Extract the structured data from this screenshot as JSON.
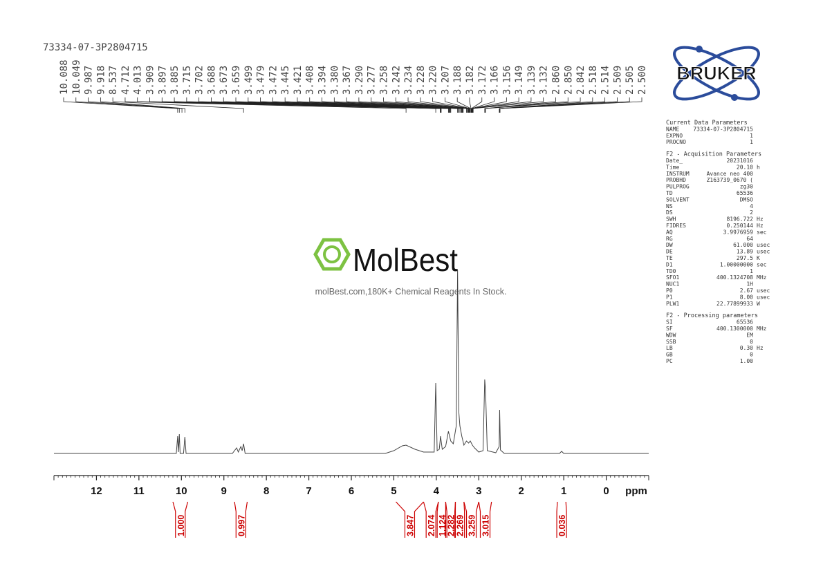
{
  "header": {
    "sample": "73334-07-3P2804715"
  },
  "logo": {
    "brand": "BRUKER"
  },
  "watermark": {
    "brand": "MolBest",
    "tagline": "molBest.com,180K+ Chemical Reagents In Stock."
  },
  "parameters": [
    {
      "title": "Current Data Parameters",
      "rows": [
        [
          "NAME",
          "73334-07-3P2804715",
          ""
        ],
        [
          "EXPNO",
          "1",
          ""
        ],
        [
          "PROCNO",
          "1",
          ""
        ]
      ]
    },
    {
      "title": "F2 - Acquisition Parameters",
      "rows": [
        [
          "Date_",
          "20231016",
          ""
        ],
        [
          "Time",
          "20.10",
          "h"
        ],
        [
          "INSTRUM",
          "Avance neo 400",
          ""
        ],
        [
          "PROBHD",
          "Z163739_0670 (",
          ""
        ],
        [
          "PULPROG",
          "zg30",
          ""
        ],
        [
          "TD",
          "65536",
          ""
        ],
        [
          "SOLVENT",
          "DMSO",
          ""
        ],
        [
          "NS",
          "4",
          ""
        ],
        [
          "DS",
          "2",
          ""
        ],
        [
          "SWH",
          "8196.722",
          "Hz"
        ],
        [
          "FIDRES",
          "0.250144",
          "Hz"
        ],
        [
          "AQ",
          "3.9976959",
          "sec"
        ],
        [
          "RG",
          "64",
          ""
        ],
        [
          "DW",
          "61.000",
          "usec"
        ],
        [
          "DE",
          "13.89",
          "usec"
        ],
        [
          "TE",
          "297.5",
          "K"
        ],
        [
          "D1",
          "1.00000000",
          "sec"
        ],
        [
          "TD0",
          "1",
          ""
        ],
        [
          "SFO1",
          "400.1324708",
          "MHz"
        ],
        [
          "NUC1",
          "1H",
          ""
        ],
        [
          "P0",
          "2.67",
          "usec"
        ],
        [
          "P1",
          "8.00",
          "usec"
        ],
        [
          "PLW1",
          "22.77899933",
          "W"
        ]
      ]
    },
    {
      "title": "F2 - Processing parameters",
      "rows": [
        [
          "SI",
          "65536",
          ""
        ],
        [
          "SF",
          "400.1300000",
          "MHz"
        ],
        [
          "WDW",
          "EM",
          ""
        ],
        [
          "SSB",
          "0",
          ""
        ],
        [
          "LB",
          "0.30",
          "Hz"
        ],
        [
          "GB",
          "0",
          ""
        ],
        [
          "PC",
          "1.00",
          ""
        ]
      ]
    }
  ],
  "chart_data": {
    "type": "line",
    "xlabel": "ppm",
    "xlim": [
      13.0,
      -1.0
    ],
    "xticks": [
      12,
      11,
      10,
      9,
      8,
      7,
      6,
      5,
      4,
      3,
      2,
      1,
      0
    ],
    "ylim": [
      0,
      270
    ],
    "x": [
      13,
      10.12,
      10.088,
      10.07,
      10.049,
      10.03,
      9.95,
      9.918,
      9.89,
      8.8,
      8.7,
      8.66,
      8.6,
      8.57,
      8.537,
      8.5,
      5.2,
      5.0,
      4.8,
      4.712,
      4.5,
      4.3,
      4.05,
      4.013,
      3.98,
      3.93,
      3.9,
      3.86,
      3.78,
      3.715,
      3.66,
      3.6,
      3.53,
      3.499,
      3.47,
      3.445,
      3.4,
      3.35,
      3.29,
      3.24,
      3.2,
      3.15,
      3.1,
      3.0,
      2.9,
      2.86,
      2.84,
      2.8,
      2.6,
      2.52,
      2.509,
      2.49,
      2.4,
      1.1,
      1.05,
      1.0,
      -1
    ],
    "series": [
      {
        "color": "#444444",
        "values": [
          0,
          0,
          25,
          2,
          28,
          0,
          0,
          24,
          0,
          0,
          8,
          2,
          10,
          4,
          14,
          0,
          0,
          4,
          11,
          12,
          6,
          2,
          2,
          102,
          4,
          6,
          25,
          6,
          10,
          32,
          18,
          14,
          40,
          265,
          60,
          40,
          25,
          12,
          18,
          15,
          18,
          12,
          8,
          2,
          4,
          107,
          90,
          4,
          1,
          10,
          63,
          5,
          0,
          0,
          3,
          0,
          0
        ]
      }
    ],
    "peaks": [
      10.088,
      10.049,
      9.987,
      9.918,
      8.537,
      4.712,
      4.013,
      3.909,
      3.897,
      3.885,
      3.715,
      3.702,
      3.688,
      3.673,
      3.659,
      3.499,
      3.479,
      3.472,
      3.445,
      3.421,
      3.408,
      3.394,
      {
        "value": 3.38,
        "label": "3.380"
      },
      3.367,
      {
        "value": 3.29,
        "label": "3.290"
      },
      3.277,
      3.258,
      3.242,
      3.234,
      3.228,
      {
        "value": 3.22,
        "label": "3.220"
      },
      3.207,
      3.188,
      3.182,
      3.172,
      3.166,
      3.156,
      3.149,
      3.139,
      3.132,
      {
        "value": 2.86,
        "label": "2.860"
      },
      {
        "value": 2.85,
        "label": "2.850"
      },
      2.842,
      2.518,
      2.514,
      2.509,
      2.505,
      {
        "value": 2.5,
        "label": "2.500"
      }
    ],
    "integrals": [
      {
        "value": 1.0,
        "label": "1.000",
        "range": [
          10.2,
          9.85
        ]
      },
      {
        "value": 0.997,
        "label": "0.997",
        "range": [
          8.75,
          8.45
        ]
      },
      {
        "value": 3.847,
        "label": "3.847",
        "range": [
          4.95,
          4.3
        ]
      },
      {
        "value": 2.074,
        "label": "2.074",
        "range": [
          4.3,
          3.95
        ]
      },
      {
        "value": 1.124,
        "label": "1.124",
        "range": [
          3.95,
          3.78
        ]
      },
      {
        "value": 2.282,
        "label": "2.282",
        "range": [
          3.78,
          3.55
        ]
      },
      {
        "value": 2.269,
        "label": "2.269",
        "range": [
          3.55,
          3.35
        ]
      },
      {
        "value": 3.259,
        "label": "3.259",
        "range": [
          3.35,
          3.0
        ]
      },
      {
        "value": 3.015,
        "label": "3.015",
        "range": [
          3.0,
          2.7
        ]
      },
      {
        "value": 0.036,
        "label": "0.036",
        "range": [
          1.15,
          0.95
        ]
      }
    ]
  }
}
